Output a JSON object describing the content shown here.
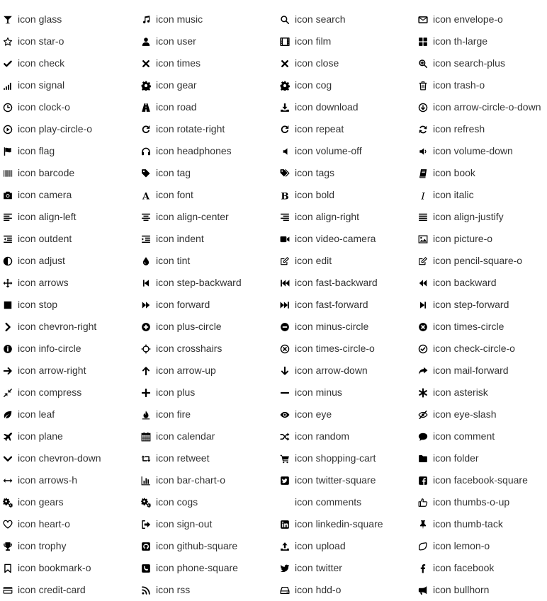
{
  "icons": [
    [
      "icon glass",
      "icon music",
      "icon search",
      "icon envelope-o"
    ],
    [
      "icon star-o",
      "icon user",
      "icon film",
      "icon th-large"
    ],
    [
      "icon check",
      "icon times",
      "icon close",
      "icon search-plus"
    ],
    [
      "icon signal",
      "icon gear",
      "icon cog",
      "icon trash-o"
    ],
    [
      "icon clock-o",
      "icon road",
      "icon download",
      "icon arrow-circle-o-down"
    ],
    [
      "icon play-circle-o",
      "icon rotate-right",
      "icon repeat",
      "icon refresh"
    ],
    [
      "icon flag",
      "icon headphones",
      "icon volume-off",
      "icon volume-down"
    ],
    [
      "icon barcode",
      "icon tag",
      "icon tags",
      "icon book"
    ],
    [
      "icon camera",
      "icon font",
      "icon bold",
      "icon italic"
    ],
    [
      "icon align-left",
      "icon align-center",
      "icon align-right",
      "icon align-justify"
    ],
    [
      "icon outdent",
      "icon indent",
      "icon video-camera",
      "icon picture-o"
    ],
    [
      "icon adjust",
      "icon tint",
      "icon edit",
      "icon pencil-square-o"
    ],
    [
      "icon arrows",
      "icon step-backward",
      "icon fast-backward",
      "icon backward"
    ],
    [
      "icon stop",
      "icon forward",
      "icon fast-forward",
      "icon step-forward"
    ],
    [
      "icon chevron-right",
      "icon plus-circle",
      "icon minus-circle",
      "icon times-circle"
    ],
    [
      "icon info-circle",
      "icon crosshairs",
      "icon times-circle-o",
      "icon check-circle-o"
    ],
    [
      "icon arrow-right",
      "icon arrow-up",
      "icon arrow-down",
      "icon mail-forward"
    ],
    [
      "icon compress",
      "icon plus",
      "icon minus",
      "icon asterisk"
    ],
    [
      "icon leaf",
      "icon fire",
      "icon eye",
      "icon eye-slash"
    ],
    [
      "icon plane",
      "icon calendar",
      "icon random",
      "icon comment"
    ],
    [
      "icon chevron-down",
      "icon retweet",
      "icon shopping-cart",
      "icon folder"
    ],
    [
      "icon arrows-h",
      "icon bar-chart-o",
      "icon twitter-square",
      "icon facebook-square"
    ],
    [
      "icon gears",
      "icon cogs",
      "icon comments",
      "icon thumbs-o-up"
    ],
    [
      "icon heart-o",
      "icon sign-out",
      "icon linkedin-square",
      "icon thumb-tack"
    ],
    [
      "icon trophy",
      "icon github-square",
      "icon upload",
      "icon lemon-o"
    ],
    [
      "icon bookmark-o",
      "icon phone-square",
      "icon twitter",
      "icon facebook"
    ],
    [
      "icon credit-card",
      "icon rss",
      "icon hdd-o",
      "icon bullhorn"
    ]
  ],
  "icon_color": "#000000",
  "text_color": "#333333"
}
